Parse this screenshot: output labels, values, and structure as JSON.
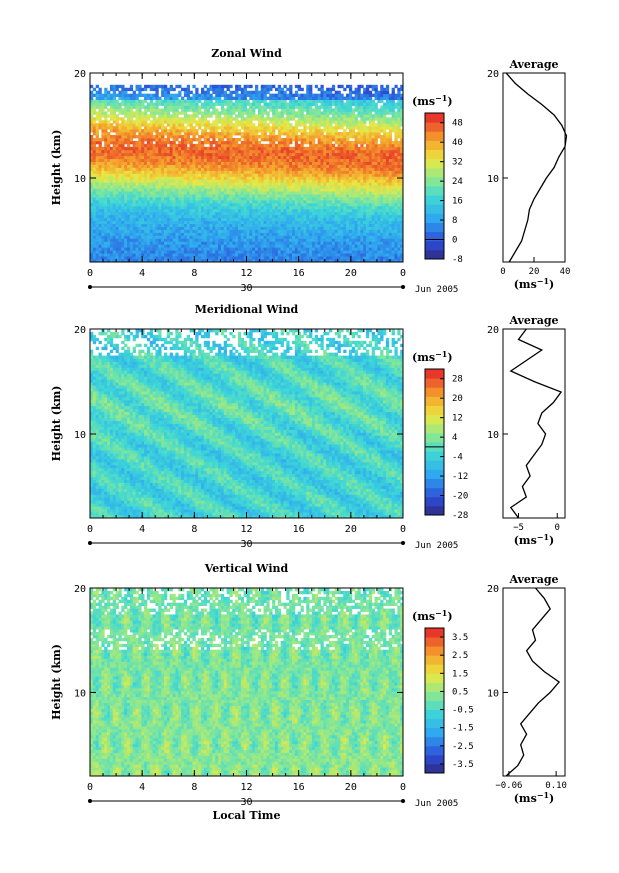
{
  "chart_data": [
    {
      "type": "heatmap",
      "title": "Zonal Wind",
      "ylabel": "Height (km)",
      "xlabel": "",
      "x_ticks": [
        "0",
        "4",
        "8",
        "12",
        "16",
        "20",
        "0"
      ],
      "y_ticks": [
        "10",
        "20"
      ],
      "ylim": [
        2,
        20
      ],
      "date_marker": "30",
      "date_label": "Jun 2005",
      "colorbar": {
        "unit_base": "(ms",
        "unit_sup": "−1",
        "unit_close": ")",
        "min": -8,
        "max": 52,
        "ticks": [
          "48",
          "40",
          "32",
          "24",
          "16",
          "8",
          "0",
          "-8"
        ],
        "tick_values": [
          48,
          40,
          32,
          24,
          16,
          8,
          0,
          -8
        ],
        "zero_line": 0
      },
      "field": {
        "core_height": 13,
        "core_value": 38,
        "surface_value": 8,
        "top_value": 0
      },
      "profile": {
        "title": "Average",
        "x_ticks": [
          "0",
          "20",
          "40"
        ],
        "xlim": [
          0,
          40
        ],
        "unit_base": "(ms",
        "unit_sup": "−1",
        "unit_close": ")",
        "heights": [
          2,
          3,
          4,
          5,
          6,
          7,
          8,
          9,
          10,
          11,
          12,
          13,
          14,
          15,
          16,
          17,
          18,
          19,
          20
        ],
        "values": [
          4,
          8,
          12,
          14,
          16,
          17,
          20,
          24,
          28,
          33,
          36,
          40,
          41,
          38,
          33,
          25,
          16,
          8,
          2
        ]
      }
    },
    {
      "type": "heatmap",
      "title": "Meridional Wind",
      "ylabel": "Height (km)",
      "xlabel": "",
      "x_ticks": [
        "0",
        "4",
        "8",
        "12",
        "16",
        "20",
        "0"
      ],
      "y_ticks": [
        "10",
        "20"
      ],
      "ylim": [
        2,
        20
      ],
      "date_marker": "30",
      "date_label": "Jun 2005",
      "colorbar": {
        "unit_base": "(ms",
        "unit_sup": "−1",
        "unit_close": ")",
        "min": -28,
        "max": 32,
        "ticks": [
          "28",
          "20",
          "12",
          "4",
          "-4",
          "-12",
          "-20",
          "-28"
        ],
        "tick_values": [
          28,
          20,
          12,
          4,
          -4,
          -12,
          -20,
          -28
        ],
        "zero_line": 0
      },
      "field": {
        "core_height": 13,
        "core_value": 3,
        "surface_value": -3,
        "top_value": -2
      },
      "profile": {
        "title": "Average",
        "x_ticks": [
          "−5",
          "0"
        ],
        "xlim": [
          -7,
          1
        ],
        "unit_base": "(ms",
        "unit_sup": "−1",
        "unit_close": ")",
        "heights": [
          2,
          3,
          4,
          5,
          6,
          7,
          8,
          9,
          10,
          11,
          12,
          13,
          14,
          15,
          16,
          17,
          18,
          19,
          20
        ],
        "values": [
          -5,
          -6,
          -4,
          -4.5,
          -3.5,
          -4,
          -3,
          -2,
          -1.5,
          -2.5,
          -2,
          -0.5,
          0.5,
          -3,
          -6,
          -4,
          -2,
          -5,
          -4
        ]
      }
    },
    {
      "type": "heatmap",
      "title": "Vertical Wind",
      "ylabel": "Height (km)",
      "xlabel": "Local Time",
      "x_ticks": [
        "0",
        "4",
        "8",
        "12",
        "16",
        "20",
        "0"
      ],
      "y_ticks": [
        "10",
        "20"
      ],
      "ylim": [
        2,
        20
      ],
      "date_marker": "30",
      "date_label": "Jun 2005",
      "colorbar": {
        "unit_base": "(ms",
        "unit_sup": "−1",
        "unit_close": ")",
        "min": -4,
        "max": 4,
        "ticks": [
          "3.5",
          "2.5",
          "1.5",
          "0.5",
          "-0.5",
          "-1.5",
          "-2.5",
          "-3.5"
        ],
        "tick_values": [
          3.5,
          2.5,
          1.5,
          0.5,
          -0.5,
          -1.5,
          -2.5,
          -3.5
        ],
        "zero_line": null
      },
      "field": {
        "core_height": 12,
        "core_value": 0.2,
        "surface_value": 0.4,
        "top_value": 0.1
      },
      "profile": {
        "title": "Average",
        "x_ticks": [
          "−0.06",
          "0.10"
        ],
        "xlim": [
          -0.08,
          0.13
        ],
        "unit_base": "(ms",
        "unit_sup": "−1",
        "unit_close": ")",
        "heights": [
          2,
          3,
          4,
          5,
          6,
          7,
          8,
          9,
          10,
          11,
          12,
          13,
          14,
          15,
          16,
          17,
          18,
          19,
          20
        ],
        "values": [
          -0.07,
          -0.03,
          -0.01,
          -0.02,
          0.0,
          -0.02,
          0.01,
          0.04,
          0.08,
          0.11,
          0.06,
          0.02,
          0.0,
          0.03,
          0.02,
          0.05,
          0.08,
          0.06,
          0.03
        ]
      }
    }
  ]
}
